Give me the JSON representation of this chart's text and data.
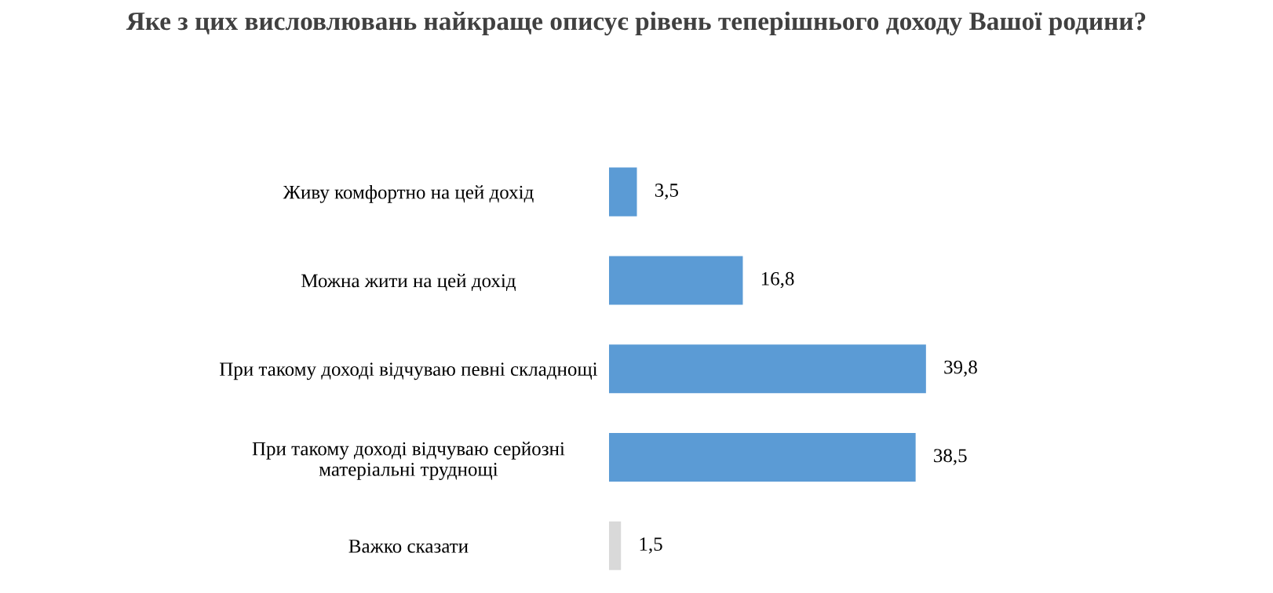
{
  "chart_data": {
    "type": "bar",
    "orientation": "horizontal",
    "title": "Яке з цих висловлювань найкраще описує рівень теперішнього доходу Вашої родини?",
    "categories": [
      "Живу комфортно на цей дохід",
      "Можна жити на цей дохід",
      "При такому доході відчуваю певні складнощі",
      "При такому доході відчуваю серйозні\nматеріальні труднощі",
      "Важко сказати"
    ],
    "values": [
      3.5,
      16.8,
      39.8,
      38.5,
      1.5
    ],
    "value_labels": [
      "3,5",
      "16,8",
      "39,8",
      "38,5",
      "1,5"
    ],
    "colors": [
      "#5b9bd5",
      "#5b9bd5",
      "#5b9bd5",
      "#5b9bd5",
      "#d9d9d9"
    ],
    "grid": false,
    "legend": false
  }
}
